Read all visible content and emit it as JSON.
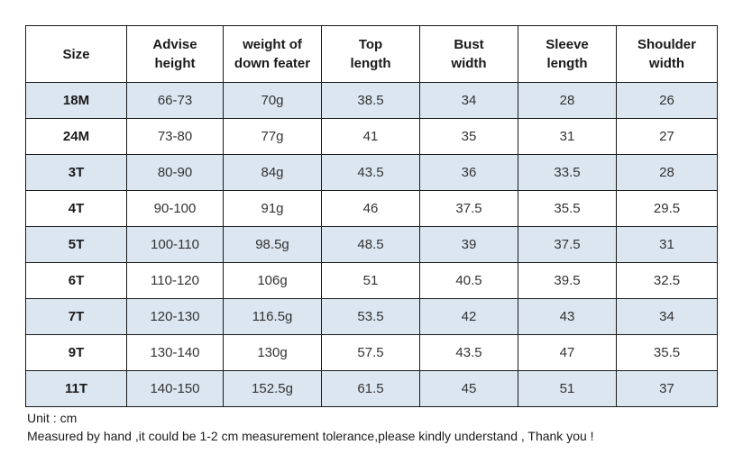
{
  "table": {
    "headers": [
      [
        "Size"
      ],
      [
        "Advise",
        "height"
      ],
      [
        "weight of",
        "down feater"
      ],
      [
        "Top",
        "length"
      ],
      [
        "Bust",
        "width"
      ],
      [
        "Sleeve",
        "length"
      ],
      [
        "Shoulder",
        "width"
      ]
    ],
    "rows": [
      [
        "18M",
        "66-73",
        "70g",
        "38.5",
        "34",
        "28",
        "26"
      ],
      [
        "24M",
        "73-80",
        "77g",
        "41",
        "35",
        "31",
        "27"
      ],
      [
        "3T",
        "80-90",
        "84g",
        "43.5",
        "36",
        "33.5",
        "28"
      ],
      [
        "4T",
        "90-100",
        "91g",
        "46",
        "37.5",
        "35.5",
        "29.5"
      ],
      [
        "5T",
        "100-110",
        "98.5g",
        "48.5",
        "39",
        "37.5",
        "31"
      ],
      [
        "6T",
        "110-120",
        "106g",
        "51",
        "40.5",
        "39.5",
        "32.5"
      ],
      [
        "7T",
        "120-130",
        "116.5g",
        "53.5",
        "42",
        "43",
        "34"
      ],
      [
        "9T",
        "130-140",
        "130g",
        "57.5",
        "43.5",
        "47",
        "35.5"
      ],
      [
        "11T",
        "140-150",
        "152.5g",
        "61.5",
        "45",
        "51",
        "37"
      ]
    ],
    "shade_color": "#dce6f0"
  },
  "notes": {
    "unit": "Unit : cm",
    "tolerance": "Measured by hand ,it could be 1-2 cm measurement tolerance,please kindly understand , Thank you !"
  }
}
